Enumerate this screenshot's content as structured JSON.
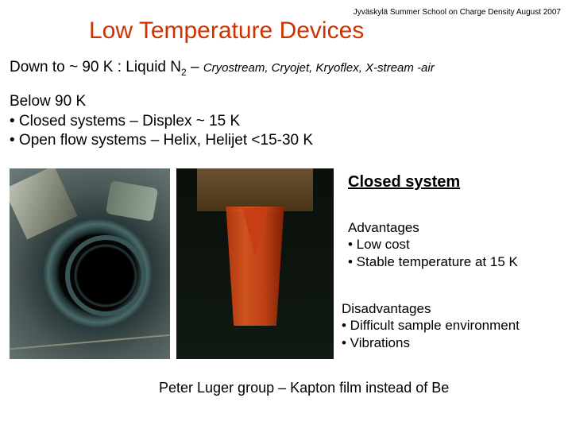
{
  "header": "Jyväskylä Summer School  on Charge Density August 2007",
  "title": "Low Temperature Devices",
  "line1_a": "Down to ~ 90 K  : Liquid N",
  "line1_sub": "2",
  "line1_b": " – ",
  "line1_small": "Cryostream, Cryojet, Kryoflex, X-stream -air",
  "below": {
    "l1": "Below 90 K",
    "l2": "• Closed systems – Displex ~ 15 K",
    "l3": "• Open flow systems – Helix, Helijet  <15-30 K"
  },
  "side_heading": "Closed system",
  "advantages": {
    "h": "Advantages",
    "a1": "• Low cost",
    "a2": "• Stable temperature at 15 K"
  },
  "disadvantages": {
    "h": "Disadvantages",
    "d1": "• Difficult sample environment",
    "d2": "• Vibrations"
  },
  "footer": "Peter Luger group – Kapton film instead of Be"
}
